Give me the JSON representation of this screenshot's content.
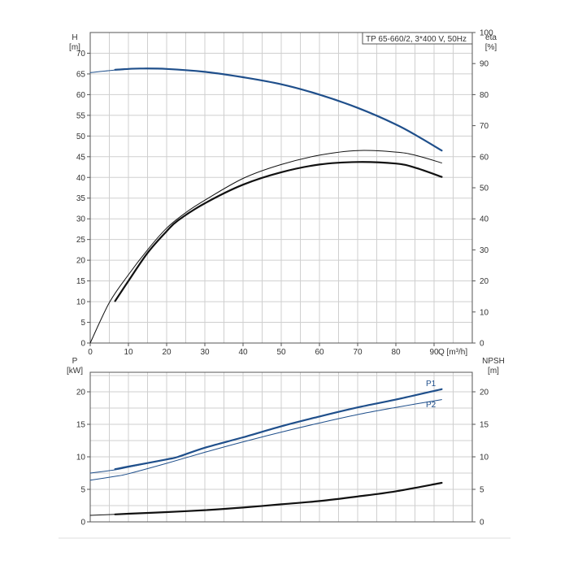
{
  "title": "TP 65-660/2, 3*400 V, 50Hz",
  "colors": {
    "blue": "#1f4f8b",
    "black": "#111111",
    "grid": "#cfcfcf",
    "frame": "#555555"
  },
  "chart_data": [
    {
      "type": "line",
      "panel": "upper",
      "grid": true,
      "xlabel": "Q [m³/h]",
      "xlim": [
        0,
        100
      ],
      "xticks": [
        0,
        10,
        20,
        30,
        40,
        50,
        60,
        70,
        80,
        90
      ],
      "ylabel_left": [
        "H",
        "[m]"
      ],
      "ylim_left": [
        0,
        75
      ],
      "yticks_left": [
        0,
        5,
        10,
        15,
        20,
        25,
        30,
        35,
        40,
        45,
        50,
        55,
        60,
        65,
        70
      ],
      "ylabel_right": [
        "eta",
        "[%]"
      ],
      "ylim_right": [
        0,
        100
      ],
      "yticks_right": [
        0,
        10,
        20,
        30,
        40,
        50,
        60,
        70,
        80,
        90,
        100
      ],
      "series": [
        {
          "axis": "left",
          "color": "#1f4f8b",
          "style": "thin",
          "x": [
            0,
            5,
            10,
            13,
            20,
            30,
            40,
            50,
            60,
            70,
            80,
            86,
            92
          ],
          "y": [
            65.3,
            65.8,
            66.2,
            66.3,
            66.2,
            65.5,
            64.2,
            62.5,
            60.0,
            56.8,
            52.8,
            49.8,
            46.5
          ]
        },
        {
          "axis": "left",
          "color": "#1f4f8b",
          "style": "thick",
          "x": [
            6.5,
            10,
            13,
            20,
            30,
            40,
            50,
            60,
            70,
            80,
            86,
            92
          ],
          "y": [
            66.0,
            66.2,
            66.3,
            66.2,
            65.5,
            64.2,
            62.5,
            60.0,
            56.8,
            52.8,
            49.8,
            46.5
          ]
        },
        {
          "axis": "right",
          "color": "#111111",
          "style": "thin",
          "x": [
            0,
            5,
            10,
            15,
            20,
            25,
            30,
            40,
            50,
            60,
            70,
            80,
            85,
            92
          ],
          "y": [
            0,
            13,
            22,
            30,
            37,
            42,
            46,
            53,
            57.5,
            60.5,
            62,
            61.5,
            60.5,
            58
          ]
        },
        {
          "axis": "right",
          "color": "#111111",
          "style": "thick",
          "x": [
            6.5,
            10,
            15,
            20,
            23,
            30,
            40,
            50,
            60,
            70,
            80,
            85,
            92
          ],
          "y": [
            13.5,
            20,
            29,
            36,
            39.5,
            45,
            51,
            55,
            57.5,
            58.3,
            57.8,
            56.5,
            53.5
          ]
        }
      ]
    },
    {
      "type": "line",
      "panel": "lower",
      "grid": true,
      "xlim": [
        0,
        100
      ],
      "ylabel_left": [
        "P",
        "[kW]"
      ],
      "ylim_left": [
        0,
        23
      ],
      "yticks_left": [
        0,
        5,
        10,
        15,
        20
      ],
      "ylabel_right": [
        "NPSH",
        "[m]"
      ],
      "ylim_right": [
        0,
        23
      ],
      "yticks_right": [
        0,
        5,
        10,
        15,
        20
      ],
      "series": [
        {
          "name": "P1",
          "axis": "left",
          "color": "#1f4f8b",
          "style": "thin",
          "x": [
            0,
            6.5,
            10,
            20,
            23,
            30,
            40,
            50,
            60,
            70,
            80,
            92
          ],
          "y": [
            7.5,
            8.0,
            8.4,
            9.6,
            10.0,
            11.4,
            13.0,
            14.7,
            16.2,
            17.6,
            18.8,
            20.4
          ]
        },
        {
          "name": "P1",
          "axis": "left",
          "color": "#1f4f8b",
          "style": "thick",
          "x": [
            6.5,
            10,
            20,
            23,
            30,
            40,
            50,
            60,
            70,
            80,
            92
          ],
          "y": [
            8.1,
            8.5,
            9.6,
            10.0,
            11.4,
            13.0,
            14.7,
            16.2,
            17.6,
            18.8,
            20.4
          ]
        },
        {
          "name": "P2",
          "axis": "left",
          "color": "#1f4f8b",
          "style": "thin",
          "x": [
            0,
            6.5,
            10,
            20,
            30,
            40,
            50,
            60,
            70,
            80,
            92
          ],
          "y": [
            6.4,
            7.0,
            7.4,
            9.0,
            10.7,
            12.3,
            13.8,
            15.2,
            16.5,
            17.6,
            18.8
          ]
        },
        {
          "axis": "right",
          "color": "#111111",
          "style": "thin",
          "x": [
            0,
            6.5
          ],
          "y": [
            1.0,
            1.15
          ]
        },
        {
          "axis": "right",
          "color": "#111111",
          "style": "thick",
          "x": [
            6.5,
            10,
            20,
            30,
            40,
            50,
            60,
            70,
            80,
            92
          ],
          "y": [
            1.15,
            1.25,
            1.5,
            1.8,
            2.2,
            2.7,
            3.2,
            3.9,
            4.7,
            6.0
          ]
        }
      ]
    }
  ]
}
